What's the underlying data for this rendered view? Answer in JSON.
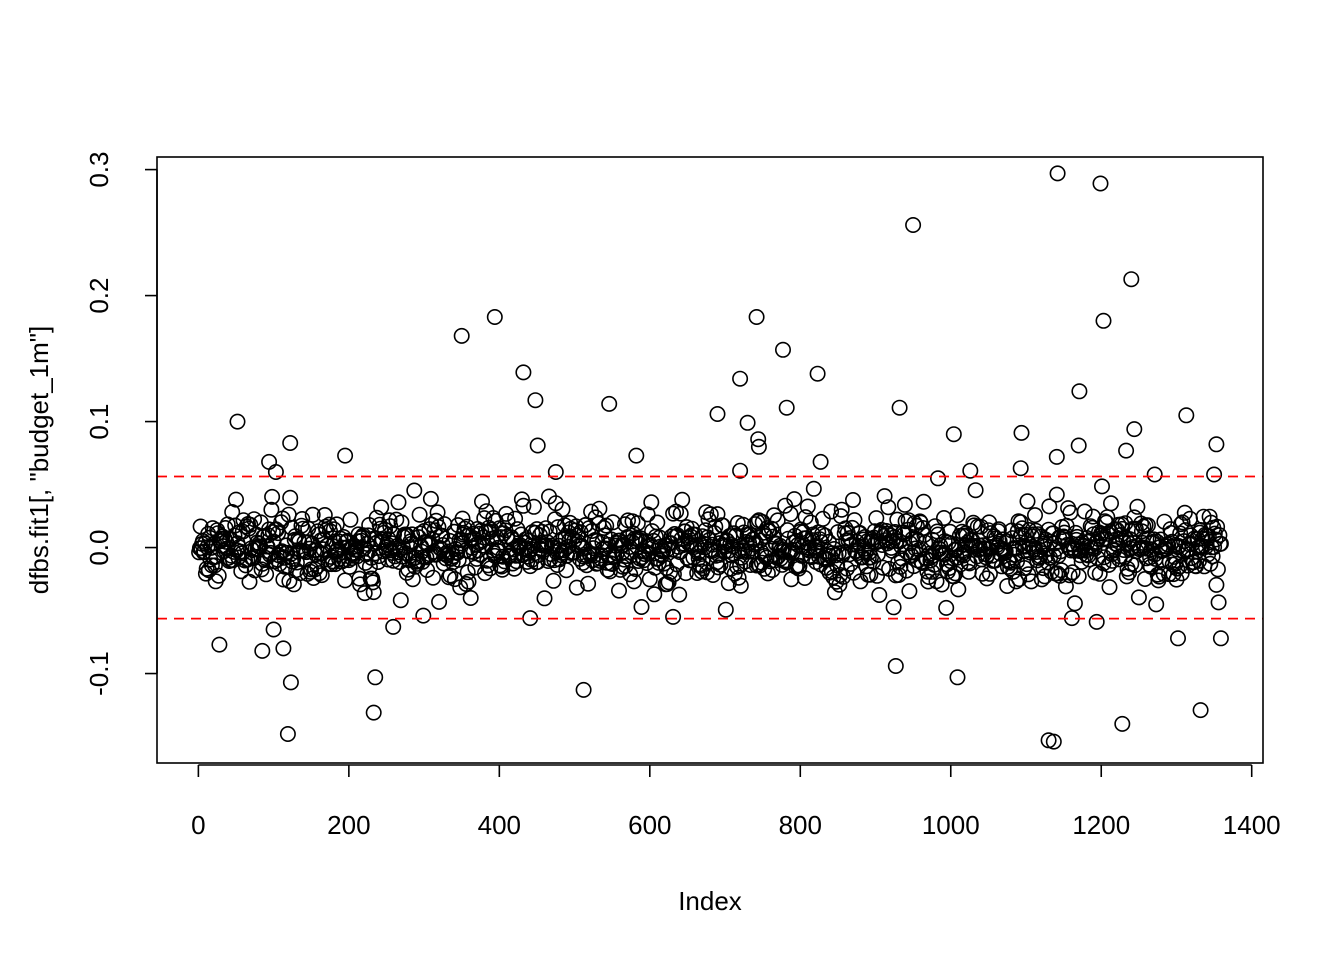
{
  "chart_data": {
    "type": "scatter",
    "title": "",
    "xlabel": "Index",
    "ylabel": "dfbs.fit1[, \"budget_1m\"]",
    "xlim": [
      -55,
      1415
    ],
    "ylim": [
      -0.171,
      0.31
    ],
    "x_ticks": [
      0,
      200,
      400,
      600,
      800,
      1000,
      1200,
      1400
    ],
    "x_tick_labels": [
      "0",
      "200",
      "400",
      "600",
      "800",
      "1000",
      "1200",
      "1400"
    ],
    "y_ticks": [
      -0.1,
      0.0,
      0.1,
      0.2,
      0.3
    ],
    "y_tick_labels": [
      "-0.1",
      "0.0",
      "0.1",
      "0.2",
      "0.3"
    ],
    "n_points": 1359,
    "grid": false,
    "legend": "none",
    "reference_lines": [
      {
        "y": 0.0564,
        "color": "#ff0000",
        "style": "dashed"
      },
      {
        "y": -0.0564,
        "color": "#ff0000",
        "style": "dashed"
      }
    ],
    "notable_points": [
      {
        "x": 1142,
        "y": 0.297
      },
      {
        "x": 1199,
        "y": 0.289
      },
      {
        "x": 950,
        "y": 0.256
      },
      {
        "x": 1240,
        "y": 0.213
      },
      {
        "x": 394,
        "y": 0.183
      },
      {
        "x": 742,
        "y": 0.183
      },
      {
        "x": 1203,
        "y": 0.18
      },
      {
        "x": 350,
        "y": 0.168
      },
      {
        "x": 777,
        "y": 0.157
      },
      {
        "x": 432,
        "y": 0.139
      },
      {
        "x": 823,
        "y": 0.138
      },
      {
        "x": 720,
        "y": 0.134
      },
      {
        "x": 1171,
        "y": 0.124
      },
      {
        "x": 448,
        "y": 0.117
      },
      {
        "x": 546,
        "y": 0.114
      },
      {
        "x": 932,
        "y": 0.111
      },
      {
        "x": 782,
        "y": 0.111
      },
      {
        "x": 690,
        "y": 0.106
      },
      {
        "x": 1313,
        "y": 0.105
      },
      {
        "x": 52,
        "y": 0.1
      },
      {
        "x": 730,
        "y": 0.099
      },
      {
        "x": 1244,
        "y": 0.094
      },
      {
        "x": 1094,
        "y": 0.091
      },
      {
        "x": 1004,
        "y": 0.09
      },
      {
        "x": 744,
        "y": 0.086
      },
      {
        "x": 122,
        "y": 0.083
      },
      {
        "x": 451,
        "y": 0.081
      },
      {
        "x": 1170,
        "y": 0.081
      },
      {
        "x": 1353,
        "y": 0.082
      },
      {
        "x": 745,
        "y": 0.08
      },
      {
        "x": 1233,
        "y": 0.077
      },
      {
        "x": 195,
        "y": 0.073
      },
      {
        "x": 582,
        "y": 0.073
      },
      {
        "x": 1141,
        "y": 0.072
      },
      {
        "x": 827,
        "y": 0.068
      },
      {
        "x": 94,
        "y": 0.068
      },
      {
        "x": 720,
        "y": 0.061
      },
      {
        "x": 1026,
        "y": 0.061
      },
      {
        "x": 475,
        "y": 0.06
      },
      {
        "x": 103,
        "y": 0.06
      },
      {
        "x": 1093,
        "y": 0.063
      },
      {
        "x": 1350,
        "y": 0.058
      },
      {
        "x": 1271,
        "y": 0.058
      },
      {
        "x": 983,
        "y": 0.055
      },
      {
        "x": 1130,
        "y": -0.153
      },
      {
        "x": 1137,
        "y": -0.154
      },
      {
        "x": 119,
        "y": -0.148
      },
      {
        "x": 1228,
        "y": -0.14
      },
      {
        "x": 233,
        "y": -0.131
      },
      {
        "x": 1332,
        "y": -0.129
      },
      {
        "x": 512,
        "y": -0.113
      },
      {
        "x": 123,
        "y": -0.107
      },
      {
        "x": 235,
        "y": -0.103
      },
      {
        "x": 1009,
        "y": -0.103
      },
      {
        "x": 927,
        "y": -0.094
      },
      {
        "x": 85,
        "y": -0.082
      },
      {
        "x": 113,
        "y": -0.08
      },
      {
        "x": 28,
        "y": -0.077
      },
      {
        "x": 1302,
        "y": -0.072
      },
      {
        "x": 1359,
        "y": -0.072
      },
      {
        "x": 100,
        "y": -0.065
      },
      {
        "x": 259,
        "y": -0.063
      },
      {
        "x": 1194,
        "y": -0.059
      },
      {
        "x": 441,
        "y": -0.056
      },
      {
        "x": 1161,
        "y": -0.056
      },
      {
        "x": 631,
        "y": -0.055
      },
      {
        "x": 299,
        "y": -0.054
      }
    ]
  }
}
